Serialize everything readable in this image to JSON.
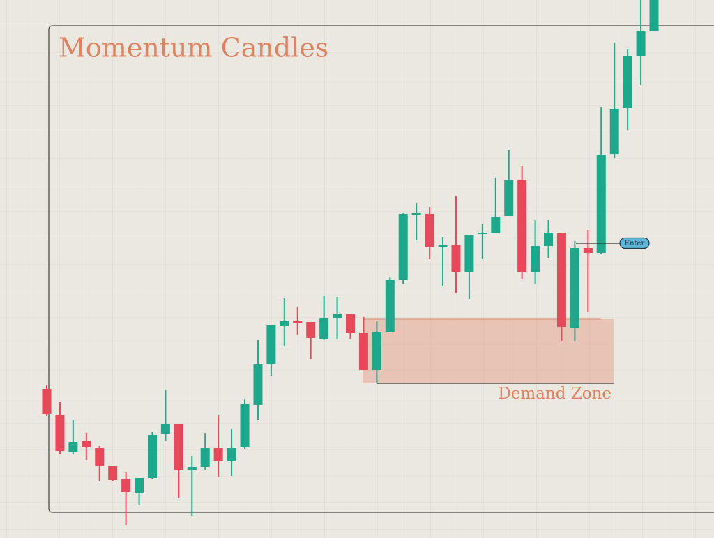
{
  "chart_data": {
    "type": "candlestick",
    "title": "Momentum Candles",
    "zone_label": "Demand Zone",
    "entry_label": "Enter",
    "open": [
      214,
      177,
      124,
      139,
      129,
      104,
      84,
      65,
      86,
      149,
      164,
      98,
      102,
      129,
      110,
      130,
      191,
      249,
      304,
      312,
      310,
      286,
      316,
      321,
      294,
      241,
      296,
      370,
      464,
      465,
      417,
      420,
      382,
      436,
      437,
      462,
      514,
      381,
      419,
      438,
      302,
      416,
      409,
      551,
      617,
      692,
      727
    ],
    "high": [
      219,
      195,
      170,
      150,
      132,
      104,
      94,
      86,
      152,
      212,
      164,
      117,
      150,
      176,
      156,
      200,
      284,
      306,
      344,
      332,
      310,
      347,
      346,
      321,
      317,
      312,
      374,
      467,
      480,
      475,
      432,
      491,
      435,
      450,
      517,
      557,
      534,
      456,
      456,
      438,
      426,
      442,
      618,
      710,
      702,
      772,
      772
    ],
    "low": [
      175,
      120,
      121,
      112,
      82,
      82,
      19,
      47,
      85,
      139,
      58,
      32,
      98,
      88,
      89,
      128,
      170,
      233,
      275,
      292,
      257,
      284,
      285,
      286,
      241,
      222,
      295,
      364,
      427,
      400,
      361,
      351,
      343,
      400,
      437,
      462,
      371,
      364,
      402,
      282,
      282,
      324,
      408,
      545,
      586,
      650,
      727
    ],
    "close": [
      178,
      125,
      138,
      130,
      104,
      83,
      66,
      86,
      148,
      164,
      97,
      102,
      129,
      110,
      129,
      192,
      249,
      305,
      312,
      309,
      287,
      315,
      321,
      294,
      241,
      296,
      370,
      465,
      466,
      418,
      420,
      382,
      435,
      438,
      461,
      514,
      382,
      419,
      438,
      303,
      416,
      409,
      550,
      616,
      692,
      727,
      772
    ],
    "up_color": "#1ea88b",
    "down_color": "#e8495a",
    "zone_low": 222,
    "zone_high": 314,
    "entry": 423,
    "ylim": [
      0,
      772
    ]
  }
}
